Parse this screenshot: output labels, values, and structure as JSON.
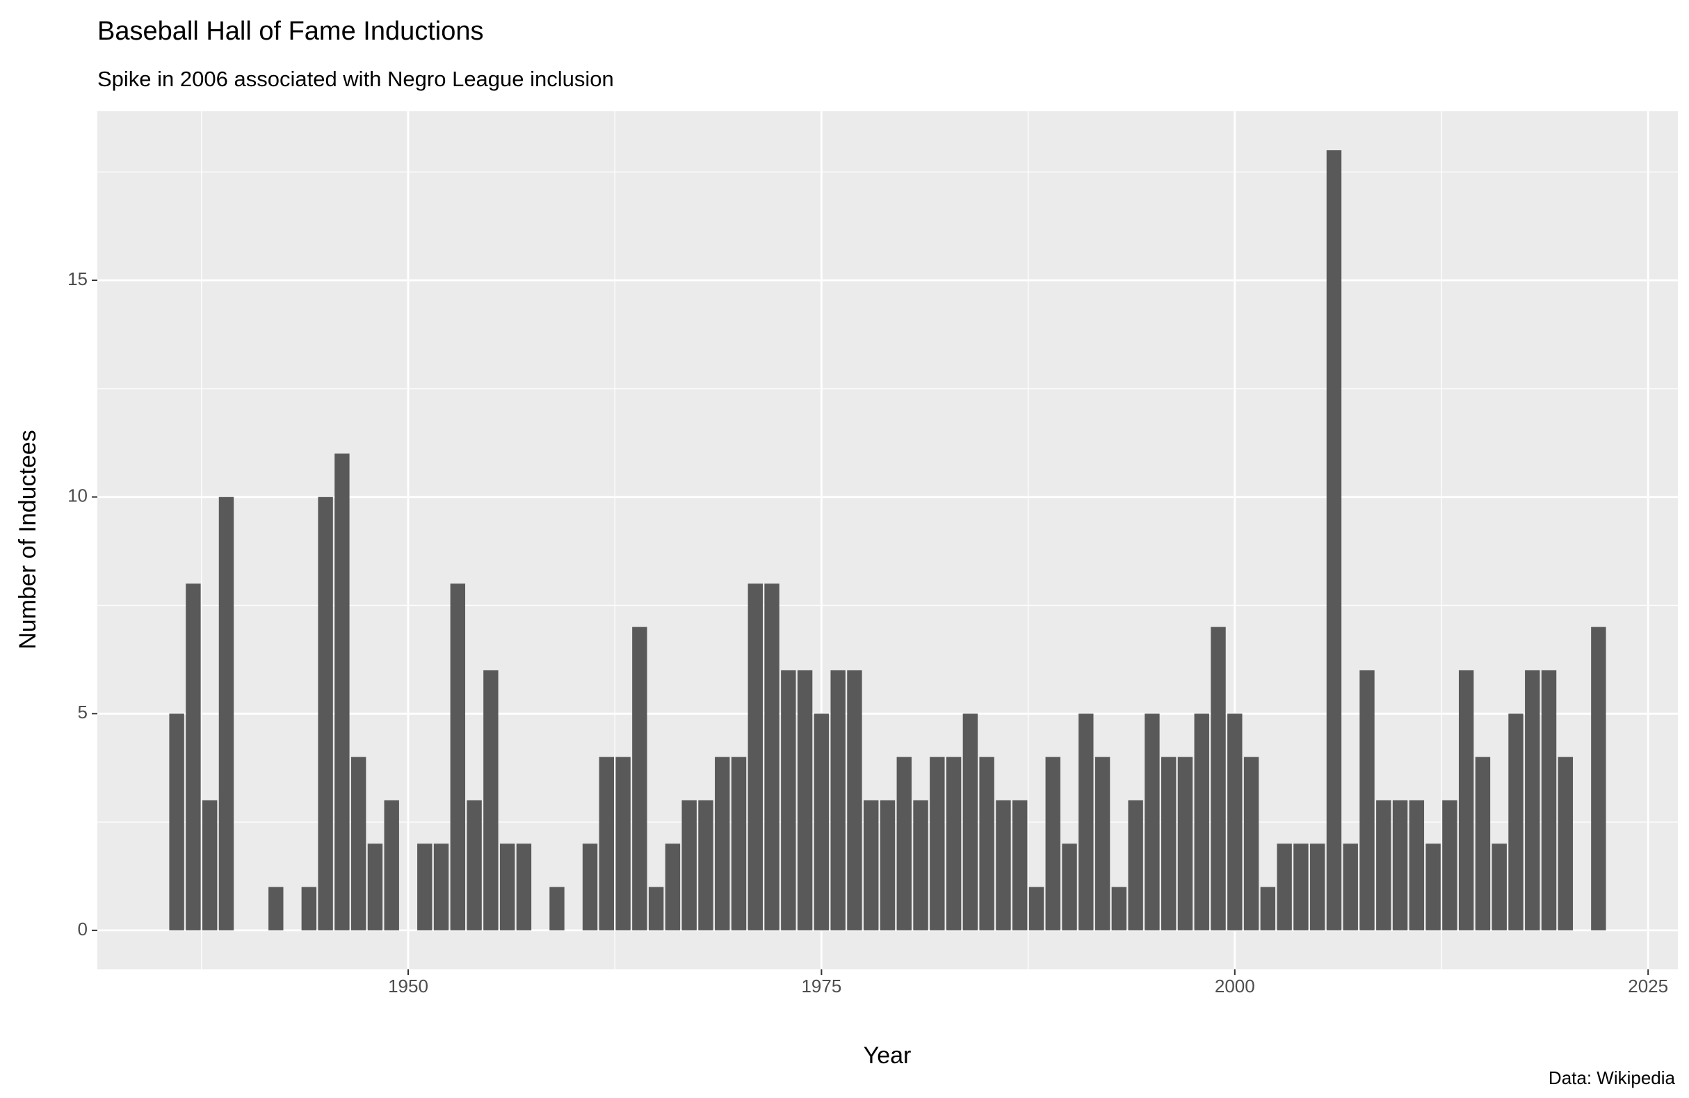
{
  "chart_data": {
    "type": "bar",
    "title": "Baseball Hall of Fame Inductions",
    "subtitle": "Spike in 2006 associated with Negro League inclusion",
    "x_label": "Year",
    "y_label": "Number of Inductees",
    "caption": "Data: Wikipedia",
    "x": [
      1936,
      1937,
      1938,
      1939,
      1942,
      1944,
      1945,
      1946,
      1947,
      1948,
      1949,
      1951,
      1952,
      1953,
      1954,
      1955,
      1956,
      1957,
      1959,
      1961,
      1962,
      1963,
      1964,
      1965,
      1966,
      1967,
      1968,
      1969,
      1970,
      1971,
      1972,
      1973,
      1974,
      1975,
      1976,
      1977,
      1978,
      1979,
      1980,
      1981,
      1982,
      1983,
      1984,
      1985,
      1986,
      1987,
      1988,
      1989,
      1990,
      1991,
      1992,
      1993,
      1994,
      1995,
      1996,
      1997,
      1998,
      1999,
      2000,
      2001,
      2002,
      2003,
      2004,
      2005,
      2006,
      2007,
      2008,
      2009,
      2010,
      2011,
      2012,
      2013,
      2014,
      2015,
      2016,
      2017,
      2018,
      2019,
      2020,
      2022
    ],
    "values": [
      5,
      8,
      3,
      10,
      1,
      1,
      10,
      11,
      4,
      2,
      3,
      2,
      2,
      8,
      3,
      6,
      2,
      2,
      1,
      2,
      4,
      4,
      7,
      1,
      2,
      3,
      3,
      4,
      4,
      8,
      8,
      6,
      6,
      5,
      6,
      6,
      3,
      3,
      4,
      3,
      4,
      4,
      5,
      4,
      3,
      3,
      1,
      4,
      2,
      5,
      4,
      1,
      3,
      5,
      4,
      4,
      5,
      7,
      5,
      4,
      1,
      2,
      2,
      2,
      18,
      2,
      6,
      3,
      3,
      3,
      2,
      3,
      6,
      4,
      2,
      5,
      6,
      6,
      4,
      7
    ],
    "color": "#595959",
    "xlim": [
      1931.2,
      2026.8
    ],
    "ylim": [
      -0.9,
      18.9
    ],
    "xticks": [
      1950,
      1975,
      2000,
      2025
    ],
    "yticks": [
      0,
      5,
      10,
      15
    ],
    "grid": true
  }
}
